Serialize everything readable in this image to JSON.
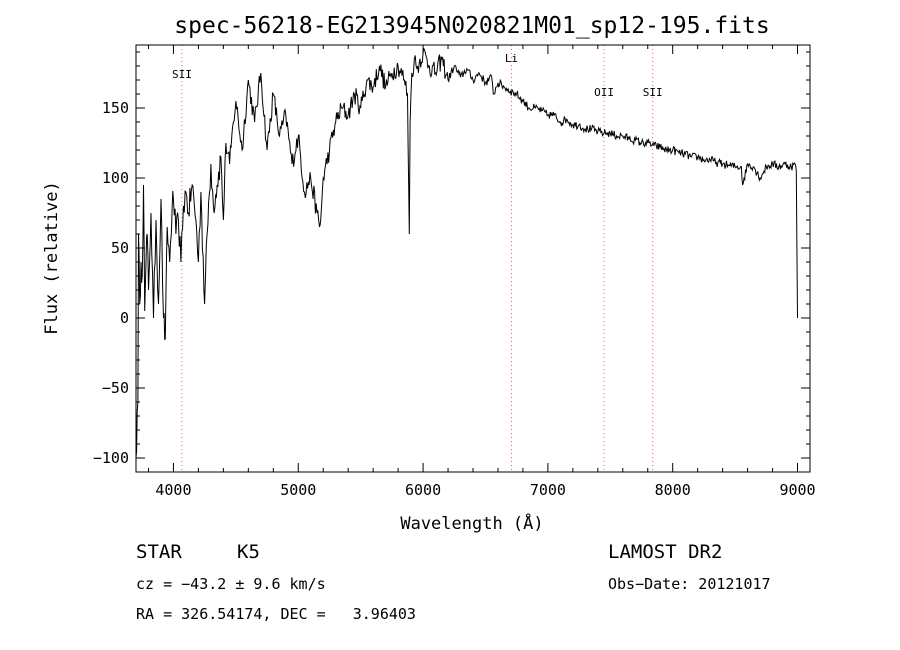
{
  "chart_data": {
    "type": "line",
    "title": "spec-56218-EG213945N020821M01_sp12-195.fits",
    "xlabel": "Wavelength (Å)",
    "ylabel": "Flux (relative)",
    "xlim": [
      3700,
      9100
    ],
    "ylim": [
      -110,
      195
    ],
    "xticks": [
      4000,
      5000,
      6000,
      7000,
      8000,
      9000
    ],
    "xtick_labels": [
      "4000",
      "5000",
      "6000",
      "7000",
      "8000",
      "9000"
    ],
    "yticks": [
      -100,
      -50,
      0,
      50,
      100,
      150
    ],
    "ytick_labels": [
      "−100",
      "−50",
      "0",
      "50",
      "100",
      "150"
    ],
    "grid": false,
    "line_color": "#000000",
    "marker_color": "#e06060",
    "lines": [
      {
        "label": "SII",
        "x": 4068
      },
      {
        "label": "Li",
        "x": 6708
      },
      {
        "label": "OII",
        "x": 7450
      },
      {
        "label": "SII",
        "x": 7840
      }
    ],
    "series": [
      {
        "x": [
          3700,
          3715,
          3720,
          3730,
          3740,
          3750,
          3760,
          3770,
          3780,
          3790,
          3800,
          3820,
          3840,
          3860,
          3880,
          3900,
          3920,
          3935,
          3950,
          3970,
          3990,
          4000,
          4020,
          4040,
          4060,
          4080,
          4100,
          4120,
          4150,
          4180,
          4200,
          4220,
          4250,
          4270,
          4300,
          4320,
          4350,
          4380,
          4400,
          4420,
          4450,
          4480,
          4500,
          4550,
          4600,
          4650,
          4700,
          4750,
          4800,
          4850,
          4900,
          4950,
          5000,
          5050,
          5100,
          5150,
          5170,
          5180,
          5200,
          5250,
          5300,
          5350,
          5400,
          5450,
          5500,
          5550,
          5600,
          5650,
          5700,
          5750,
          5800,
          5850,
          5875,
          5890,
          5896,
          5910,
          5930,
          5950,
          6000,
          6050,
          6100,
          6150,
          6200,
          6250,
          6300,
          6350,
          6400,
          6450,
          6500,
          6550,
          6563,
          6600,
          6650,
          6700,
          6750,
          6800,
          6850,
          6900,
          6950,
          7000,
          7050,
          7100,
          7150,
          7200,
          7250,
          7300,
          7350,
          7400,
          7450,
          7500,
          7550,
          7600,
          7650,
          7700,
          7750,
          7800,
          7850,
          7900,
          7950,
          8000,
          8050,
          8100,
          8150,
          8200,
          8250,
          8300,
          8350,
          8400,
          8450,
          8500,
          8550,
          8560,
          8600,
          8650,
          8700,
          8750,
          8800,
          8850,
          8900,
          8950,
          8980,
          8990,
          9000
        ],
        "values": [
          -100,
          -60,
          60,
          10,
          40,
          30,
          95,
          5,
          40,
          60,
          20,
          75,
          0,
          70,
          10,
          85,
          0,
          -15,
          65,
          40,
          80,
          85,
          60,
          70,
          40,
          80,
          90,
          75,
          95,
          70,
          40,
          90,
          10,
          60,
          110,
          80,
          95,
          115,
          70,
          125,
          110,
          140,
          155,
          120,
          170,
          140,
          175,
          120,
          160,
          130,
          145,
          110,
          130,
          90,
          100,
          75,
          65,
          70,
          100,
          120,
          140,
          150,
          145,
          160,
          150,
          170,
          165,
          180,
          165,
          175,
          180,
          170,
          160,
          60,
          140,
          175,
          185,
          178,
          190,
          180,
          175,
          185,
          170,
          180,
          172,
          178,
          170,
          175,
          168,
          172,
          160,
          168,
          165,
          162,
          160,
          155,
          150,
          150,
          148,
          145,
          145,
          140,
          142,
          138,
          138,
          135,
          135,
          133,
          132,
          132,
          130,
          130,
          128,
          127,
          125,
          125,
          123,
          122,
          120,
          120,
          118,
          117,
          115,
          115,
          113,
          113,
          111,
          110,
          109,
          108,
          108,
          95,
          110,
          108,
          100,
          108,
          110,
          108,
          110,
          108,
          110,
          105,
          0
        ]
      }
    ]
  },
  "info": {
    "object_class": "STAR",
    "subclass": "K5",
    "survey": "LAMOST DR2",
    "redshift": "cz = −43.2 ± 9.6 km/s",
    "obs_date": "Obs−Date: 20121017",
    "coords": "RA = 326.54174, DEC =   3.96403"
  }
}
